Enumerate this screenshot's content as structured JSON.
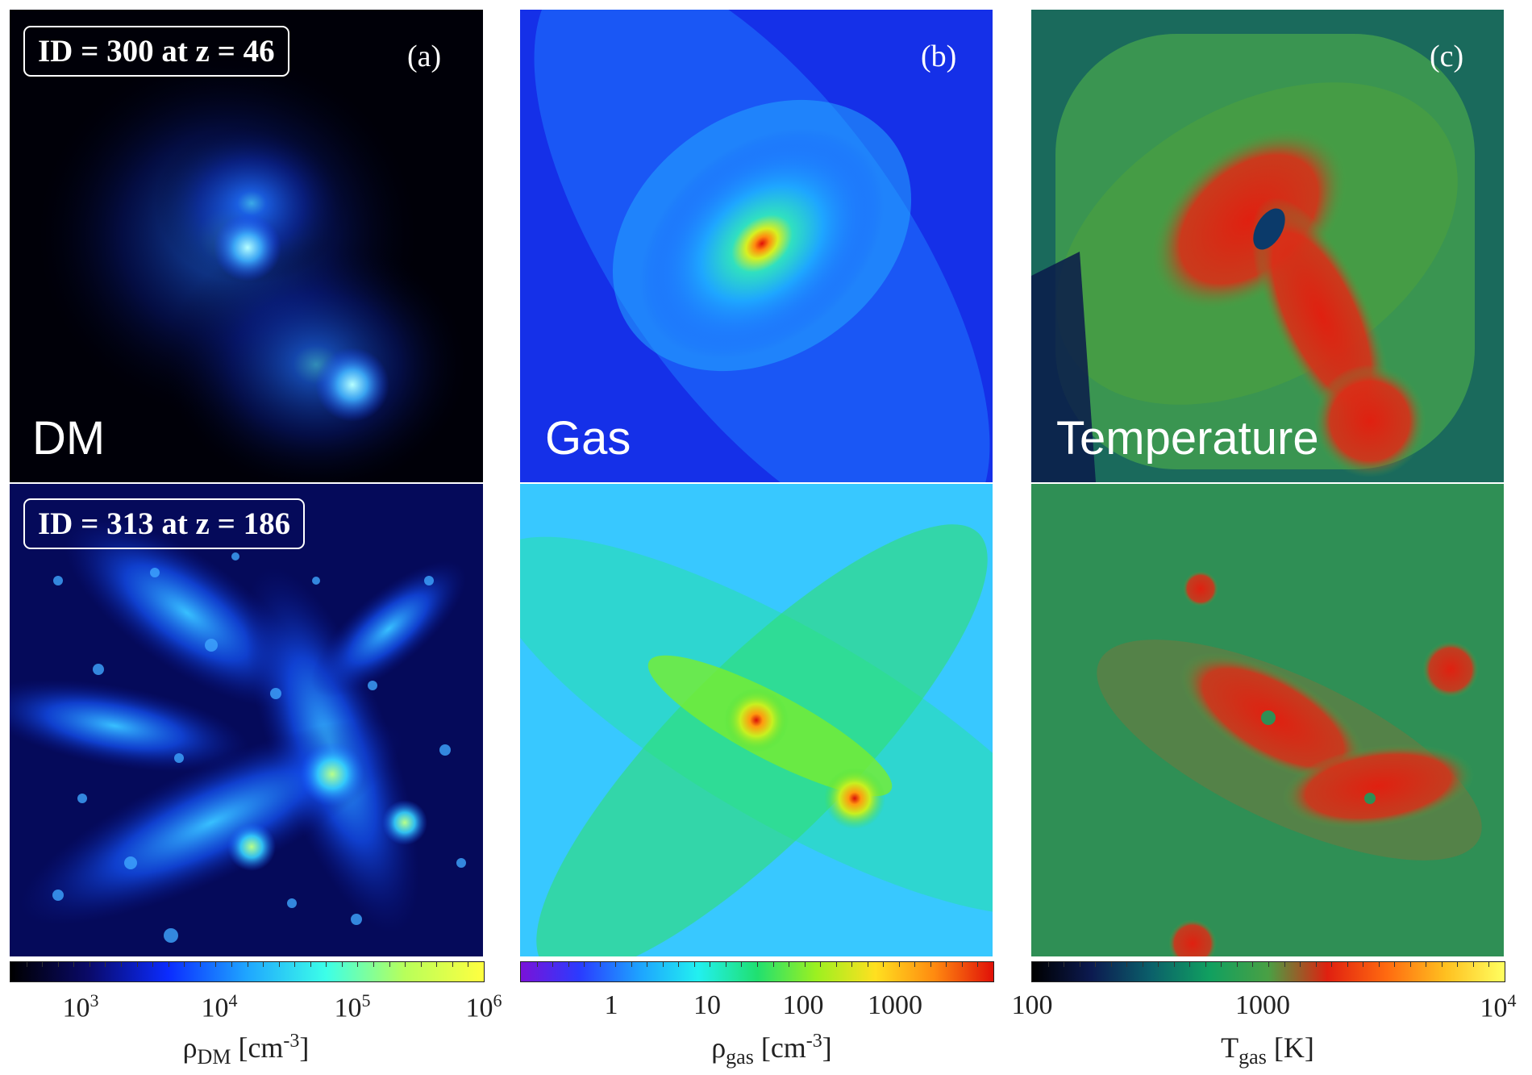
{
  "panel_a": {
    "tag": "(a)",
    "title": "DM",
    "top_id": "ID = 300 at z = 46",
    "bottom_id": "ID = 313 at z = 186",
    "colorbar": {
      "label_main": "ρ",
      "label_sub": "DM",
      "label_unit": " [cm",
      "label_exp": "-3",
      "label_close": "]",
      "ticks": [
        {
          "base": "10",
          "exp": "3"
        },
        {
          "base": "10",
          "exp": "4"
        },
        {
          "base": "10",
          "exp": "5"
        },
        {
          "base": "10",
          "exp": "6"
        }
      ],
      "colors": [
        "#000000",
        "#0a0a6a",
        "#0b2cff",
        "#1fa6ff",
        "#3cffe8",
        "#b8ff5a",
        "#ffff40"
      ]
    }
  },
  "panel_b": {
    "tag": "(b)",
    "title": "Gas",
    "colorbar": {
      "label_main": "ρ",
      "label_sub": "gas",
      "label_unit": " [cm",
      "label_exp": "-3",
      "label_close": "]",
      "ticks": [
        "1",
        "10",
        "100",
        "1000"
      ],
      "colors": [
        "#7a12d8",
        "#2a3cff",
        "#1ea2ff",
        "#22f0f0",
        "#20e070",
        "#9cf020",
        "#ffe020",
        "#ff8a10",
        "#e01008"
      ]
    }
  },
  "panel_c": {
    "tag": "(c)",
    "title": "Temperature",
    "colorbar": {
      "label_main": "T",
      "label_sub": "gas",
      "label_unit": " [K]",
      "ticks": [
        {
          "base": "100",
          "exp": ""
        },
        {
          "base": "1000",
          "exp": ""
        },
        {
          "base": "10",
          "exp": "4"
        }
      ],
      "colors": [
        "#000000",
        "#0c1a50",
        "#0b5f6a",
        "#10a060",
        "#4aa044",
        "#e02010",
        "#ff6a10",
        "#ffc020",
        "#ffff60"
      ]
    }
  }
}
